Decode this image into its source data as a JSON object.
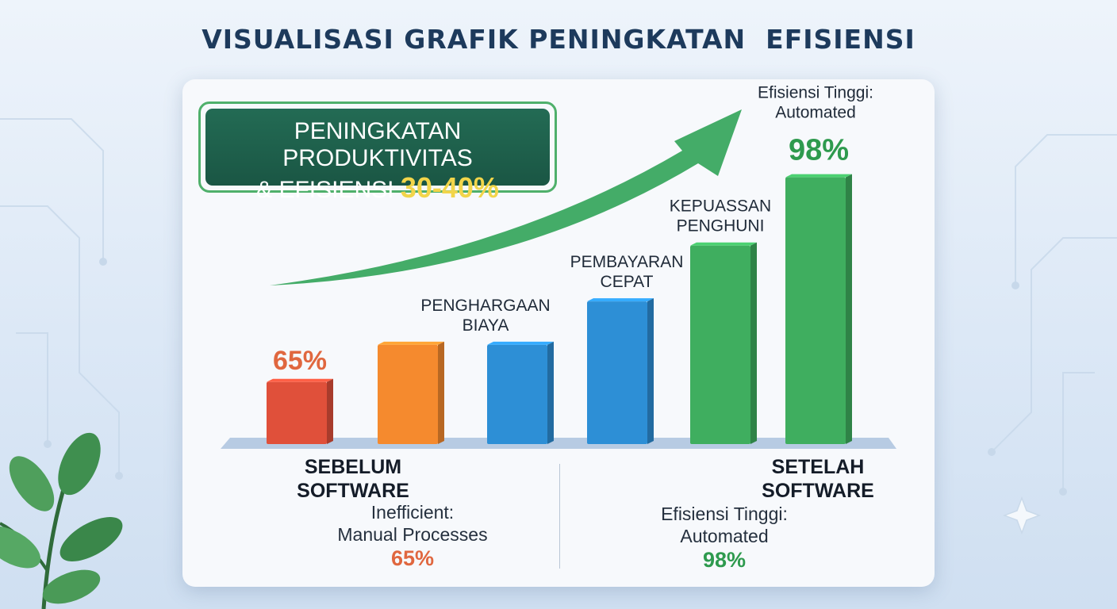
{
  "title": "VISUALISASI GRAFIK PENINGKATAN  EFISIENSI",
  "banner": {
    "line1": "PENINGKATAN PRODUKTIVITAS",
    "line2_prefix": "& EFISIENSI ",
    "highlight": "30-40%"
  },
  "colors": {
    "red": "#e0503a",
    "orange": "#f58a2e",
    "blue": "#2d8fd6",
    "green": "#3fae5f",
    "dark_green": "#1e6b52",
    "title": "#1d3a5c"
  },
  "chart_data": {
    "type": "bar",
    "bar_labels": [
      "",
      "",
      "PENGHARGAAN\nBIAYA",
      "PEMBAYARAN\nCEPAT",
      "KEPUASSAN\nPENGHUNI",
      "Efisiensi Tinggi:\nAutomated"
    ],
    "values": [
      65,
      71,
      71,
      78,
      87,
      98
    ],
    "value_labels": [
      "65%",
      "",
      "",
      "",
      "",
      "98%"
    ],
    "bar_colors": [
      "#e0503a",
      "#f58a2e",
      "#2d8fd6",
      "#2d8fd6",
      "#3fae5f",
      "#3fae5f"
    ],
    "value_label_colors": [
      "#e0673f",
      "",
      "",
      "",
      "",
      "#2e9a4e"
    ],
    "ylim": [
      55,
      100
    ],
    "grid": false,
    "trend_arrow": true
  },
  "left_caption": {
    "title": "SEBELUM\nSOFTWARE",
    "subtitle": "Inefficient:\nManual Processes",
    "value": "65%"
  },
  "right_caption": {
    "title": "SETELAH\nSOFTWARE",
    "subtitle": "Efisiensi Tinggi:\nAutomated",
    "value": "98%"
  },
  "decor": {
    "plant_icon": "plant-icon",
    "sparkle_icon": "sparkle-icon"
  }
}
